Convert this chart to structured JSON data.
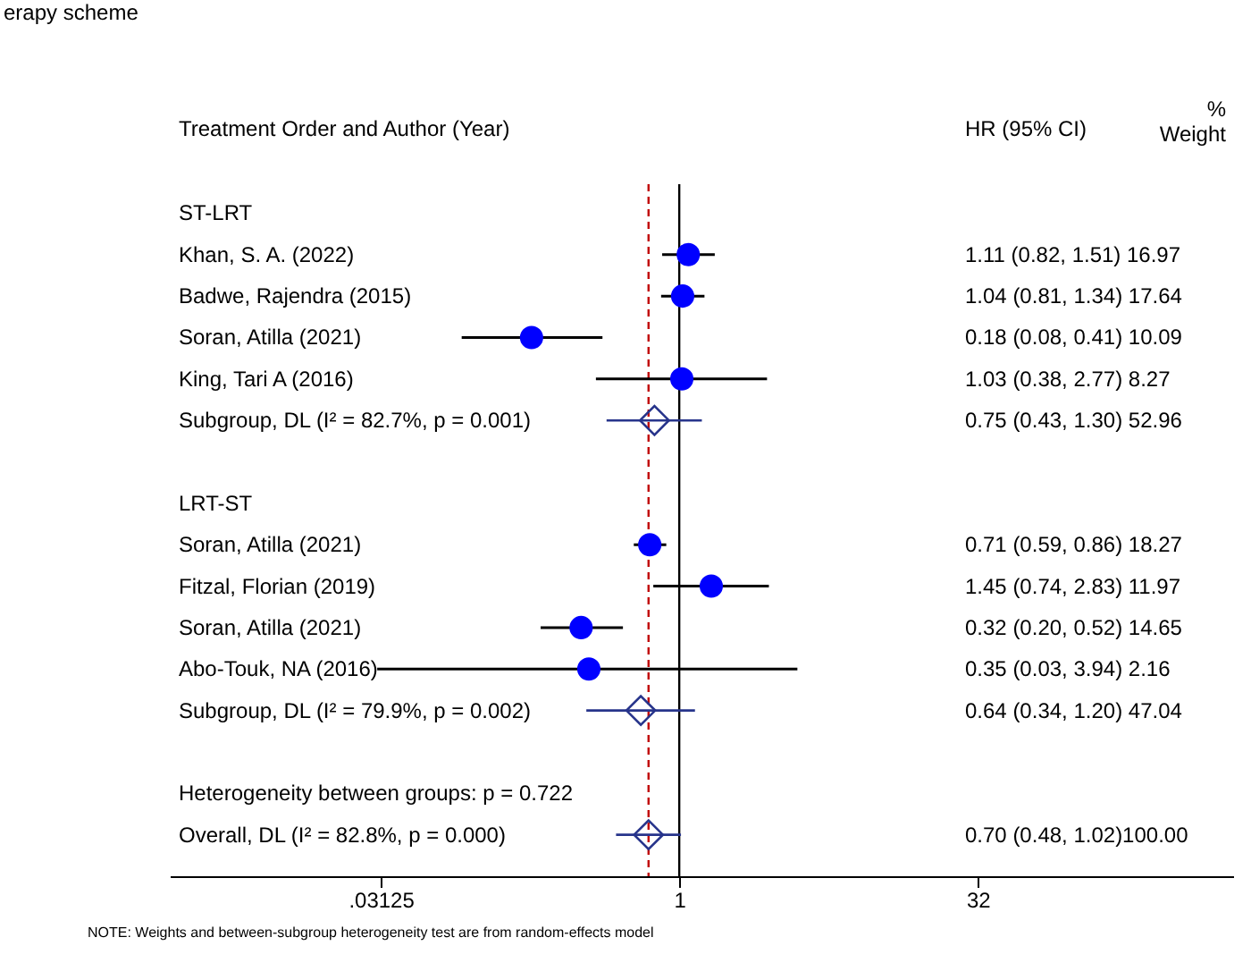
{
  "chart_data": {
    "type": "scatter",
    "orientation": "horizontal",
    "title": "erapy scheme",
    "ylabel": "Treatment Order and Author (Year)",
    "categories": [
      "ST-LRT",
      "Khan, S. A. (2022)",
      "Badwe, Rajendra (2015)",
      "Soran, Atilla (2021)",
      "King, Tari A (2016)",
      "Subgroup, DL (I² = 82.7%, p = 0.001)",
      null,
      "LRT-ST",
      "Soran, Atilla (2021)",
      "Fitzal, Florian (2019)",
      "Soran, Atilla (2021)",
      "Abo-Touk, NA (2016)",
      "Subgroup, DL (I² = 79.9%, p = 0.002)",
      null,
      "Heterogeneity between groups: p = 0.722",
      "Overall, DL (I² = 82.8%, p = 0.000)"
    ],
    "series": [
      {
        "type": "scatter",
        "marker": "circle",
        "color": "#0000ff",
        "values": [
          null,
          1.11,
          1.04,
          0.18,
          1.03,
          null,
          null,
          null,
          0.71,
          1.45,
          0.32,
          0.35,
          null,
          null,
          null,
          null
        ],
        "errors": [
          null,
          [
            0.82,
            1.51
          ],
          [
            0.81,
            1.34
          ],
          [
            0.08,
            0.41
          ],
          [
            0.38,
            2.77
          ],
          null,
          null,
          null,
          [
            0.59,
            0.86
          ],
          [
            0.74,
            2.83
          ],
          [
            0.2,
            0.52
          ],
          [
            0.03,
            3.94
          ],
          null,
          null,
          null,
          null
        ]
      },
      {
        "type": "scatter",
        "marker": "diamond",
        "color": "#27348b",
        "values": [
          null,
          null,
          null,
          null,
          null,
          0.75,
          null,
          null,
          null,
          null,
          null,
          null,
          0.64,
          null,
          null,
          0.7
        ],
        "errors": [
          null,
          null,
          null,
          null,
          null,
          [
            0.43,
            1.3
          ],
          null,
          null,
          null,
          null,
          null,
          null,
          [
            0.34,
            1.2
          ],
          null,
          null,
          [
            0.48,
            1.02
          ]
        ]
      }
    ],
    "xlim": [
      0.0027,
      620
    ],
    "xticks": [
      {
        "value": 0.03125,
        "label": ".03125"
      },
      1,
      32
    ],
    "log": "x",
    "tick_labels": "x",
    "ref_lines": [
      {
        "axis": "x",
        "value": 1,
        "color": "#000000",
        "line_style": "solid"
      },
      {
        "axis": "x",
        "value": 0.7,
        "color": "#c00000",
        "line_style": "dashed"
      }
    ],
    "annotations": [
      "HR (95% CI)",
      "%\nWeight",
      "NOTE: Weights and between-subgroup heterogeneity test are from random-effects model",
      "1.11 (0.82, 1.51) 16.97",
      "1.04 (0.81, 1.34) 17.64",
      "0.18 (0.08, 0.41) 10.09",
      "1.03 (0.38, 2.77)  8.27",
      "0.75 (0.43, 1.30) 52.96",
      "0.71 (0.59, 0.86) 18.27",
      "1.45 (0.74, 2.83) 11.97",
      "0.32 (0.20, 0.52) 14.65",
      "0.35 (0.03, 3.94)  2.16",
      "0.64 (0.34, 1.20) 47.04",
      "0.70 (0.48, 1.02)100.00"
    ]
  }
}
